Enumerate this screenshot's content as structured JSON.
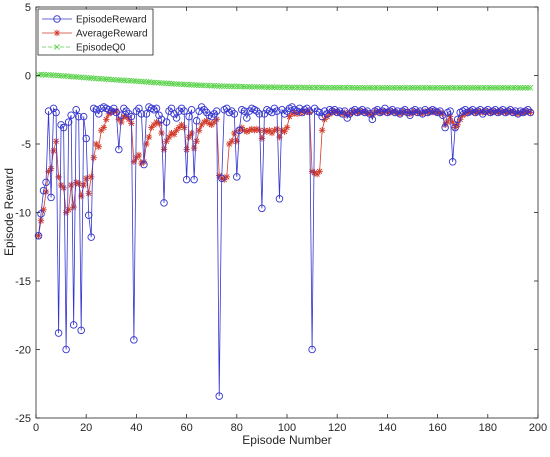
{
  "chart_data": {
    "type": "line",
    "title": "",
    "xlabel": "Episode Number",
    "ylabel": "Episode Reward",
    "xlim": [
      0,
      200
    ],
    "ylim": [
      -25,
      5
    ],
    "xticks": [
      0,
      20,
      40,
      60,
      80,
      100,
      120,
      140,
      160,
      180,
      200
    ],
    "yticks": [
      5,
      0,
      -5,
      -10,
      -15,
      -20,
      -25
    ],
    "xtick_labels": [
      "0",
      "20",
      "40",
      "60",
      "80",
      "100",
      "120",
      "140",
      "160",
      "180",
      "200"
    ],
    "ytick_labels": [
      "5",
      "0",
      "-5",
      "-10",
      "-15",
      "-20",
      "-25"
    ],
    "grid": false,
    "legend_position": "top-left",
    "colors": {
      "EpisodeReward": "#3434d0",
      "AverageReward": "#d23a2a",
      "EpisodeQ0": "#5ad24a"
    },
    "series": [
      {
        "name": "EpisodeReward",
        "marker": "circle",
        "values": [
          -11.7,
          -10.1,
          -8.4,
          -7.8,
          -2.6,
          -8.9,
          -2.4,
          -2.7,
          -18.8,
          -3.6,
          -3.8,
          -20.0,
          -3.4,
          -2.9,
          -18.2,
          -2.5,
          -3.0,
          -18.6,
          -3.0,
          -4.6,
          -10.2,
          -11.8,
          -2.4,
          -2.5,
          -2.8,
          -2.4,
          -2.3,
          -2.4,
          -2.5,
          -2.6,
          -2.4,
          -2.7,
          -5.4,
          -2.9,
          -2.4,
          -2.6,
          -2.8,
          -3.0,
          -19.3,
          -2.6,
          -2.4,
          -2.8,
          -6.5,
          -2.8,
          -2.3,
          -2.4,
          -2.5,
          -2.4,
          -2.9,
          -3.2,
          -9.3,
          -3.4,
          -2.6,
          -2.4,
          -2.8,
          -3.1,
          -2.6,
          -2.4,
          -2.6,
          -7.6,
          -3.0,
          -2.5,
          -7.6,
          -3.3,
          -2.6,
          -2.3,
          -2.5,
          -2.7,
          -2.9,
          -3.0,
          -2.8,
          -2.6,
          -23.4,
          -7.5,
          -2.5,
          -2.4,
          -2.7,
          -2.6,
          -2.8,
          -7.4,
          -4.0,
          -2.5,
          -2.6,
          -3.1,
          -2.6,
          -2.4,
          -2.5,
          -2.6,
          -2.8,
          -9.7,
          -2.8,
          -2.5,
          -2.6,
          -2.7,
          -2.4,
          -2.6,
          -9.0,
          -2.5,
          -2.8,
          -2.6,
          -2.4,
          -2.3,
          -2.5,
          -2.6,
          -2.4,
          -2.7,
          -2.5,
          -2.4,
          -2.6,
          -20.0,
          -2.4,
          -2.6,
          -2.7,
          -3.0,
          -2.6,
          -2.8,
          -2.5,
          -2.6,
          -2.5,
          -2.7,
          -2.6,
          -2.8,
          -2.6,
          -3.1,
          -2.8,
          -2.6,
          -2.5,
          -2.7,
          -2.6,
          -2.5,
          -2.7,
          -2.6,
          -2.8,
          -3.2,
          -2.6,
          -2.5,
          -2.7,
          -2.6,
          -2.4,
          -2.7,
          -2.6,
          -2.5,
          -2.7,
          -2.6,
          -2.8,
          -2.6,
          -2.5,
          -2.7,
          -2.9,
          -2.6,
          -2.5,
          -2.7,
          -2.6,
          -2.8,
          -2.5,
          -2.7,
          -2.6,
          -2.5,
          -2.6,
          -2.7,
          -2.6,
          -2.9,
          -3.8,
          -2.7,
          -2.6,
          -6.3,
          -3.8,
          -3.2,
          -2.7,
          -2.6,
          -2.5,
          -2.7,
          -2.6,
          -2.5,
          -2.7,
          -2.6,
          -2.5,
          -2.8,
          -2.6,
          -2.5,
          -2.7,
          -2.6,
          -2.5,
          -2.7,
          -2.6,
          -2.5,
          -2.7,
          -2.6,
          -2.5,
          -2.7,
          -2.6,
          -2.8,
          -2.6,
          -2.7,
          -2.6,
          -2.5,
          -2.7
        ]
      },
      {
        "name": "AverageReward",
        "marker": "star",
        "values": [
          -11.7,
          -10.6,
          -9.8,
          -8.5,
          -7.0,
          -6.8,
          -5.5,
          -4.8,
          -7.4,
          -8.0,
          -8.2,
          -10.0,
          -9.8,
          -8.0,
          -9.6,
          -7.8,
          -7.9,
          -8.8,
          -8.0,
          -7.5,
          -8.6,
          -7.4,
          -6.0,
          -5.0,
          -5.2,
          -4.0,
          -3.8,
          -3.2,
          -2.8,
          -2.7,
          -2.6,
          -2.6,
          -3.2,
          -3.4,
          -3.0,
          -3.0,
          -3.2,
          -3.5,
          -6.3,
          -6.0,
          -5.8,
          -6.4,
          -6.3,
          -5.0,
          -4.5,
          -3.8,
          -3.6,
          -3.4,
          -3.5,
          -4.2,
          -5.4,
          -4.8,
          -4.5,
          -4.2,
          -4.3,
          -4.0,
          -3.8,
          -3.6,
          -3.8,
          -5.4,
          -4.5,
          -4.2,
          -5.3,
          -4.8,
          -4.0,
          -3.6,
          -3.4,
          -3.3,
          -3.5,
          -3.6,
          -3.4,
          -3.2,
          -7.3,
          -7.5,
          -7.6,
          -7.4,
          -5.0,
          -4.8,
          -4.2,
          -4.8,
          -4.0,
          -3.8,
          -4.0,
          -4.1,
          -4.0,
          -3.9,
          -4.0,
          -3.9,
          -4.0,
          -4.6,
          -4.0,
          -4.1,
          -4.0,
          -4.2,
          -4.0,
          -3.9,
          -4.5,
          -4.0,
          -4.1,
          -3.8,
          -3.0,
          -2.8,
          -2.7,
          -2.8,
          -2.7,
          -2.6,
          -2.7,
          -2.6,
          -2.7,
          -7.0,
          -7.1,
          -7.2,
          -7.0,
          -4.0,
          -3.2,
          -3.0,
          -2.8,
          -2.7,
          -2.6,
          -2.7,
          -2.7,
          -2.8,
          -2.7,
          -2.9,
          -2.8,
          -2.7,
          -2.6,
          -2.7,
          -2.7,
          -2.6,
          -2.7,
          -2.7,
          -2.8,
          -2.9,
          -2.7,
          -2.6,
          -2.7,
          -2.7,
          -2.6,
          -2.7,
          -2.7,
          -2.6,
          -2.7,
          -2.7,
          -2.8,
          -2.7,
          -2.6,
          -2.7,
          -2.8,
          -2.7,
          -2.6,
          -2.7,
          -2.7,
          -2.8,
          -2.6,
          -2.7,
          -2.7,
          -2.6,
          -2.7,
          -2.7,
          -2.7,
          -2.8,
          -3.6,
          -3.4,
          -3.0,
          -3.4,
          -3.8,
          -3.6,
          -3.2,
          -2.9,
          -2.8,
          -2.7,
          -2.7,
          -2.6,
          -2.7,
          -2.7,
          -2.6,
          -2.7,
          -2.7,
          -2.6,
          -2.7,
          -2.7,
          -2.6,
          -2.7,
          -2.7,
          -2.6,
          -2.7,
          -2.7,
          -2.6,
          -2.7,
          -2.7,
          -2.8,
          -2.7,
          -2.7,
          -2.7,
          -2.6,
          -2.7
        ]
      },
      {
        "name": "EpisodeQ0",
        "marker": "x",
        "values": [
          0.05,
          0.08,
          0.06,
          0.04,
          0.05,
          0.03,
          0.02,
          0.01,
          0.0,
          -0.02,
          -0.03,
          -0.04,
          -0.06,
          -0.08,
          -0.09,
          -0.1,
          -0.12,
          -0.13,
          -0.15,
          -0.16,
          -0.18,
          -0.19,
          -0.2,
          -0.22,
          -0.23,
          -0.24,
          -0.25,
          -0.27,
          -0.28,
          -0.3,
          -0.31,
          -0.32,
          -0.33,
          -0.34,
          -0.35,
          -0.37,
          -0.38,
          -0.39,
          -0.4,
          -0.42,
          -0.43,
          -0.44,
          -0.45,
          -0.47,
          -0.48,
          -0.5,
          -0.51,
          -0.52,
          -0.53,
          -0.55,
          -0.56,
          -0.57,
          -0.58,
          -0.6,
          -0.61,
          -0.62,
          -0.63,
          -0.64,
          -0.65,
          -0.66,
          -0.67,
          -0.68,
          -0.69,
          -0.7,
          -0.71,
          -0.72,
          -0.72,
          -0.73,
          -0.74,
          -0.75,
          -0.75,
          -0.76,
          -0.77,
          -0.77,
          -0.78,
          -0.78,
          -0.79,
          -0.79,
          -0.8,
          -0.8,
          -0.81,
          -0.81,
          -0.82,
          -0.82,
          -0.82,
          -0.83,
          -0.83,
          -0.83,
          -0.84,
          -0.84,
          -0.84,
          -0.85,
          -0.85,
          -0.85,
          -0.85,
          -0.86,
          -0.86,
          -0.86,
          -0.86,
          -0.86,
          -0.87,
          -0.87,
          -0.87,
          -0.87,
          -0.87,
          -0.87,
          -0.88,
          -0.88,
          -0.88,
          -0.88,
          -0.88,
          -0.88,
          -0.88,
          -0.88,
          -0.89,
          -0.89,
          -0.89,
          -0.89,
          -0.89,
          -0.89,
          -0.89,
          -0.89,
          -0.89,
          -0.89,
          -0.89,
          -0.89,
          -0.9,
          -0.9,
          -0.9,
          -0.9,
          -0.9,
          -0.9,
          -0.9,
          -0.9,
          -0.9,
          -0.9,
          -0.9,
          -0.9,
          -0.9,
          -0.9,
          -0.9,
          -0.9,
          -0.9,
          -0.9,
          -0.9,
          -0.9,
          -0.9,
          -0.9,
          -0.9,
          -0.9,
          -0.9,
          -0.9,
          -0.9,
          -0.9,
          -0.9,
          -0.9,
          -0.9,
          -0.9,
          -0.9,
          -0.9,
          -0.9,
          -0.9,
          -0.9,
          -0.9,
          -0.9,
          -0.9,
          -0.9,
          -0.9,
          -0.9,
          -0.9,
          -0.9,
          -0.9,
          -0.9,
          -0.9,
          -0.9,
          -0.9,
          -0.9,
          -0.9,
          -0.9,
          -0.9,
          -0.9,
          -0.9,
          -0.9,
          -0.9,
          -0.9,
          -0.9,
          -0.9,
          -0.9,
          -0.9,
          -0.9,
          -0.9,
          -0.9,
          -0.9,
          -0.9,
          -0.9,
          -0.9,
          -0.9
        ]
      }
    ]
  }
}
